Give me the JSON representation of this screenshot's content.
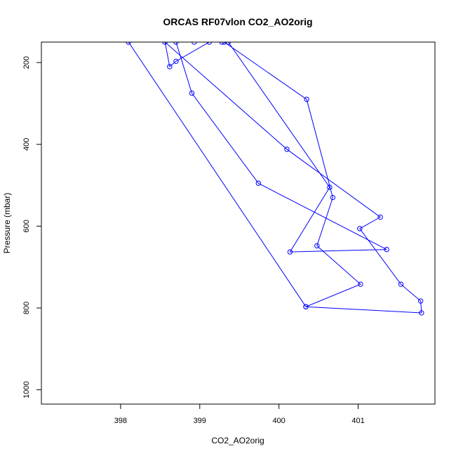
{
  "chart_data": {
    "type": "line",
    "title": "ORCAS RF07vlon CO2_AO2orig",
    "xlabel": "CO2_AO2orig",
    "ylabel": "Pressure (mbar)",
    "xlim": [
      397.0,
      401.97
    ],
    "ylim": [
      1035,
      150
    ],
    "y_reversed": true,
    "grid": false,
    "xticks": [
      398,
      399,
      400,
      401
    ],
    "yticks": [
      200,
      400,
      600,
      800,
      1000
    ],
    "marker": "open-circle",
    "series": [
      {
        "color": "#0000ff",
        "points": [
          {
            "x": 398.1,
            "y": 150
          },
          {
            "x": 400.34,
            "y": 797
          },
          {
            "x": 401.03,
            "y": 742
          },
          {
            "x": 400.48,
            "y": 648
          },
          {
            "x": 400.68,
            "y": 530
          },
          {
            "x": 400.35,
            "y": 290
          },
          {
            "x": 399.31,
            "y": 150
          },
          {
            "x": 399.36,
            "y": 150
          },
          {
            "x": 400.64,
            "y": 505
          },
          {
            "x": 400.14,
            "y": 663
          },
          {
            "x": 401.36,
            "y": 657
          },
          {
            "x": 399.74,
            "y": 495
          },
          {
            "x": 398.9,
            "y": 275
          },
          {
            "x": 398.7,
            "y": 150
          },
          {
            "x": 398.93,
            "y": 150
          },
          {
            "x": 399.28,
            "y": 150
          },
          {
            "x": 399.12,
            "y": 150
          },
          {
            "x": 398.7,
            "y": 197
          },
          {
            "x": 398.62,
            "y": 210
          },
          {
            "x": 398.56,
            "y": 150
          },
          {
            "x": 400.1,
            "y": 412
          },
          {
            "x": 401.28,
            "y": 578
          },
          {
            "x": 401.02,
            "y": 606
          },
          {
            "x": 401.54,
            "y": 742
          },
          {
            "x": 401.79,
            "y": 783
          },
          {
            "x": 401.8,
            "y": 812
          },
          {
            "x": 400.34,
            "y": 797
          }
        ]
      }
    ]
  }
}
